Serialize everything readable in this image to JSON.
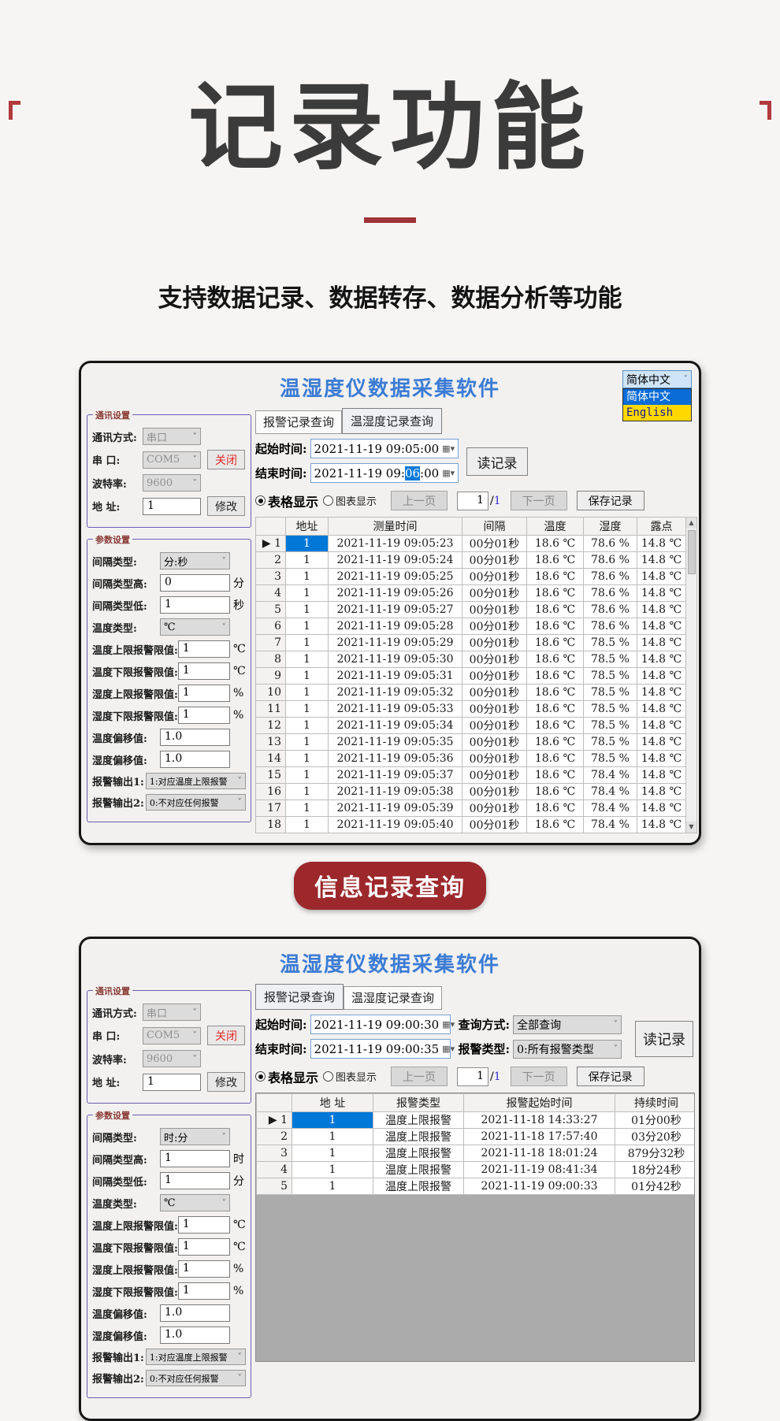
{
  "page": {
    "hero_title": "记录功能",
    "subtitle": "支持数据记录、数据转存、数据分析等功能",
    "badge_label": "信息记录查询"
  },
  "colors": {
    "page_bg": "#f6f5f4",
    "hero_text": "#3b3b3b",
    "divider_red": "#9e3338",
    "badge_bg": "#9c282c",
    "app_title_blue": "#3c7cd4",
    "group_border_purple": "#6b5fb0",
    "group_title_maroon": "#8a3a34",
    "selection_blue": "#0078d7",
    "lang_selected_bg": "#cfe4f7",
    "lang_option_blue_bg": "#0a6cd6",
    "lang_option_yellow_bg": "#ffd800",
    "lang_option_yellow_text": "#15159e",
    "close_button_red": "#e02a2a",
    "grid_empty_gray": "#ababab",
    "page_total_blue": "#3333cc"
  },
  "shared": {
    "app_title": "温湿度仪数据采集软件",
    "tabs": [
      "报警记录查询",
      "温湿度记录查询"
    ],
    "start_label": "起始时间:",
    "end_label": "结束时间:",
    "read_button": "读记录",
    "table_radio": "表格显示",
    "chart_radio": "图表显示",
    "prev_button": "上一页",
    "next_button": "下一页",
    "save_button": "保存记录",
    "page_value": "1",
    "page_slash": "/",
    "page_total": "1"
  },
  "sidebar1": {
    "comm": {
      "title": "通讯设置",
      "rows": [
        {
          "label": "通讯方式:",
          "type": "select",
          "value": "串口",
          "disabled": true,
          "name": "comm-mode"
        },
        {
          "label": "串  口:",
          "type": "select",
          "value": "COM5",
          "disabled": true,
          "name": "serial-port",
          "button": "关闭",
          "button_red": true
        },
        {
          "label": "波特率:",
          "type": "select",
          "value": "9600",
          "disabled": true,
          "name": "baud-rate"
        },
        {
          "label": "地  址:",
          "type": "input",
          "value": "1",
          "name": "address",
          "button": "修改"
        }
      ]
    },
    "params": {
      "title": "参数设置",
      "rows": [
        {
          "label": "间隔类型:",
          "type": "select",
          "value": "分:秒",
          "name": "interval-type"
        },
        {
          "label": "间隔类型高:",
          "type": "input",
          "value": "0",
          "unit": "分",
          "name": "interval-high"
        },
        {
          "label": "间隔类型低:",
          "type": "input",
          "value": "1",
          "unit": "秒",
          "name": "interval-low"
        },
        {
          "label": "温度类型:",
          "type": "select",
          "value": "℃",
          "name": "temp-unit"
        },
        {
          "label": "温度上限报警限值:",
          "type": "input",
          "value": "1",
          "unit": "℃",
          "name": "temp-high-limit"
        },
        {
          "label": "温度下限报警限值:",
          "type": "input",
          "value": "1",
          "unit": "℃",
          "name": "temp-low-limit"
        },
        {
          "label": "湿度上限报警限值:",
          "type": "input",
          "value": "1",
          "unit": "%",
          "name": "hum-high-limit"
        },
        {
          "label": "湿度下限报警限值:",
          "type": "input",
          "value": "1",
          "unit": "%",
          "name": "hum-low-limit"
        },
        {
          "label": "温度偏移值:",
          "type": "input",
          "value": "1.0",
          "name": "temp-offset"
        },
        {
          "label": "湿度偏移值:",
          "type": "input",
          "value": "1.0",
          "name": "hum-offset"
        },
        {
          "label": "报警输出1:",
          "type": "select",
          "value": "1:对应温度上限报警",
          "small": true,
          "name": "alarm-output-1"
        },
        {
          "label": "报警输出2:",
          "type": "select",
          "value": "0:不对应任何报警",
          "small": true,
          "name": "alarm-output-2"
        }
      ]
    }
  },
  "sidebar2": {
    "comm": {
      "title": "通讯设置",
      "rows": [
        {
          "label": "通讯方式:",
          "type": "select",
          "value": "串口",
          "disabled": true,
          "name": "comm-mode"
        },
        {
          "label": "串  口:",
          "type": "select",
          "value": "COM5",
          "disabled": true,
          "name": "serial-port",
          "button": "关闭",
          "button_red": true
        },
        {
          "label": "波特率:",
          "type": "select",
          "value": "9600",
          "disabled": true,
          "name": "baud-rate"
        },
        {
          "label": "地  址:",
          "type": "input",
          "value": "1",
          "name": "address",
          "button": "修改"
        }
      ]
    },
    "params": {
      "title": "参数设置",
      "rows": [
        {
          "label": "间隔类型:",
          "type": "select",
          "value": "时:分",
          "name": "interval-type"
        },
        {
          "label": "间隔类型高:",
          "type": "input",
          "value": "1",
          "unit": "时",
          "name": "interval-high"
        },
        {
          "label": "间隔类型低:",
          "type": "input",
          "value": "1",
          "unit": "分",
          "name": "interval-low"
        },
        {
          "label": "温度类型:",
          "type": "select",
          "value": "℃",
          "name": "temp-unit"
        },
        {
          "label": "温度上限报警限值:",
          "type": "input",
          "value": "1",
          "unit": "℃",
          "name": "temp-high-limit"
        },
        {
          "label": "温度下限报警限值:",
          "type": "input",
          "value": "1",
          "unit": "℃",
          "name": "temp-low-limit"
        },
        {
          "label": "湿度上限报警限值:",
          "type": "input",
          "value": "1",
          "unit": "%",
          "name": "hum-high-limit"
        },
        {
          "label": "湿度下限报警限值:",
          "type": "input",
          "value": "1",
          "unit": "%",
          "name": "hum-low-limit"
        },
        {
          "label": "温度偏移值:",
          "type": "input",
          "value": "1.0",
          "name": "temp-offset"
        },
        {
          "label": "湿度偏移值:",
          "type": "input",
          "value": "1.0",
          "name": "hum-offset"
        },
        {
          "label": "报警输出1:",
          "type": "select",
          "value": "1:对应温度上限报警",
          "small": true,
          "name": "alarm-output-1"
        },
        {
          "label": "报警输出2:",
          "type": "select",
          "value": "0:不对应任何报警",
          "small": true,
          "name": "alarm-output-2"
        }
      ]
    }
  },
  "window1": {
    "active_tab": 1,
    "language": {
      "selected": "简体中文",
      "options": [
        {
          "label": "简体中文"
        },
        {
          "label": "English"
        }
      ]
    },
    "query": {
      "start_value": "2021-11-19 09:05:00",
      "end_prefix": "2021-11-19 09:",
      "end_selected": "06",
      "end_suffix": ":00"
    },
    "table": {
      "headers": [
        "",
        "地址",
        "测量时间",
        "间隔",
        "温度",
        "湿度",
        "露点"
      ],
      "selected_row": 0,
      "rows": [
        [
          "1",
          "1",
          "2021-11-19 09:05:23",
          "00分01秒",
          "18.6 ℃",
          "78.6 %",
          "14.8 ℃"
        ],
        [
          "2",
          "1",
          "2021-11-19 09:05:24",
          "00分01秒",
          "18.6 ℃",
          "78.6 %",
          "14.8 ℃"
        ],
        [
          "3",
          "1",
          "2021-11-19 09:05:25",
          "00分01秒",
          "18.6 ℃",
          "78.6 %",
          "14.8 ℃"
        ],
        [
          "4",
          "1",
          "2021-11-19 09:05:26",
          "00分01秒",
          "18.6 ℃",
          "78.6 %",
          "14.8 ℃"
        ],
        [
          "5",
          "1",
          "2021-11-19 09:05:27",
          "00分01秒",
          "18.6 ℃",
          "78.6 %",
          "14.8 ℃"
        ],
        [
          "6",
          "1",
          "2021-11-19 09:05:28",
          "00分01秒",
          "18.6 ℃",
          "78.6 %",
          "14.8 ℃"
        ],
        [
          "7",
          "1",
          "2021-11-19 09:05:29",
          "00分01秒",
          "18.6 ℃",
          "78.5 %",
          "14.8 ℃"
        ],
        [
          "8",
          "1",
          "2021-11-19 09:05:30",
          "00分01秒",
          "18.6 ℃",
          "78.5 %",
          "14.8 ℃"
        ],
        [
          "9",
          "1",
          "2021-11-19 09:05:31",
          "00分01秒",
          "18.6 ℃",
          "78.5 %",
          "14.8 ℃"
        ],
        [
          "10",
          "1",
          "2021-11-19 09:05:32",
          "00分01秒",
          "18.6 ℃",
          "78.5 %",
          "14.8 ℃"
        ],
        [
          "11",
          "1",
          "2021-11-19 09:05:33",
          "00分01秒",
          "18.6 ℃",
          "78.5 %",
          "14.8 ℃"
        ],
        [
          "12",
          "1",
          "2021-11-19 09:05:34",
          "00分01秒",
          "18.6 ℃",
          "78.5 %",
          "14.8 ℃"
        ],
        [
          "13",
          "1",
          "2021-11-19 09:05:35",
          "00分01秒",
          "18.6 ℃",
          "78.5 %",
          "14.8 ℃"
        ],
        [
          "14",
          "1",
          "2021-11-19 09:05:36",
          "00分01秒",
          "18.6 ℃",
          "78.5 %",
          "14.8 ℃"
        ],
        [
          "15",
          "1",
          "2021-11-19 09:05:37",
          "00分01秒",
          "18.6 ℃",
          "78.4 %",
          "14.8 ℃"
        ],
        [
          "16",
          "1",
          "2021-11-19 09:05:38",
          "00分01秒",
          "18.6 ℃",
          "78.4 %",
          "14.8 ℃"
        ],
        [
          "17",
          "1",
          "2021-11-19 09:05:39",
          "00分01秒",
          "18.6 ℃",
          "78.4 %",
          "14.8 ℃"
        ],
        [
          "18",
          "1",
          "2021-11-19 09:05:40",
          "00分01秒",
          "18.6 ℃",
          "78.4 %",
          "14.8 ℃"
        ]
      ]
    }
  },
  "window2": {
    "active_tab": 0,
    "query": {
      "start_value": "2021-11-19 09:00:30",
      "end_value": "2021-11-19 09:00:35",
      "mode_label": "查询方式:",
      "mode_value": "全部查询",
      "type_label": "报警类型:",
      "type_value": "0:所有报警类型"
    },
    "table": {
      "headers": [
        "",
        "地  址",
        "报警类型",
        "报警起始时间",
        "持续时间"
      ],
      "selected_row": 0,
      "rows": [
        [
          "1",
          "1",
          "温度上限报警",
          "2021-11-18 14:33:27",
          "01分00秒"
        ],
        [
          "2",
          "1",
          "温度上限报警",
          "2021-11-18 17:57:40",
          "03分20秒"
        ],
        [
          "3",
          "1",
          "温度上限报警",
          "2021-11-18 18:01:24",
          "879分32秒"
        ],
        [
          "4",
          "1",
          "温度上限报警",
          "2021-11-19 08:41:34",
          "18分24秒"
        ],
        [
          "5",
          "1",
          "温度上限报警",
          "2021-11-19 09:00:33",
          "01分42秒"
        ]
      ]
    }
  }
}
